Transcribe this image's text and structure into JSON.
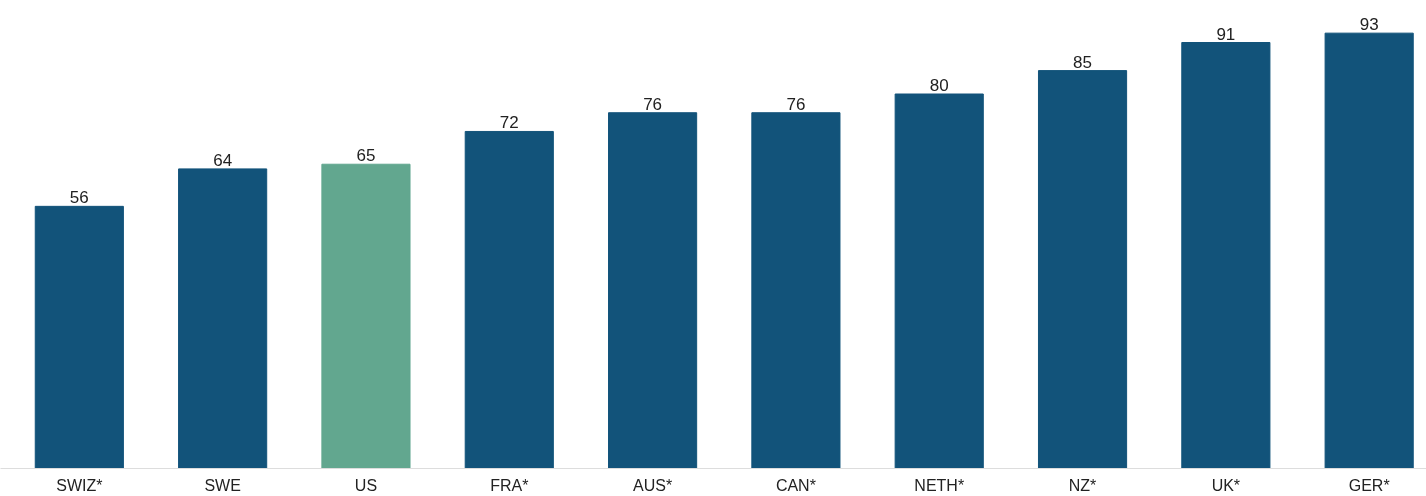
{
  "chart_data": {
    "type": "bar",
    "categories": [
      "SWIZ*",
      "SWE",
      "US",
      "FRA*",
      "AUS*",
      "CAN*",
      "NETH*",
      "NZ*",
      "UK*",
      "GER*"
    ],
    "values": [
      56,
      64,
      65,
      72,
      76,
      76,
      80,
      85,
      91,
      93
    ],
    "colors": [
      "#12537a",
      "#12537a",
      "#62a78f",
      "#12537a",
      "#12537a",
      "#12537a",
      "#12537a",
      "#12537a",
      "#12537a",
      "#12537a"
    ],
    "data_labels": true,
    "tick_labels": "x"
  }
}
